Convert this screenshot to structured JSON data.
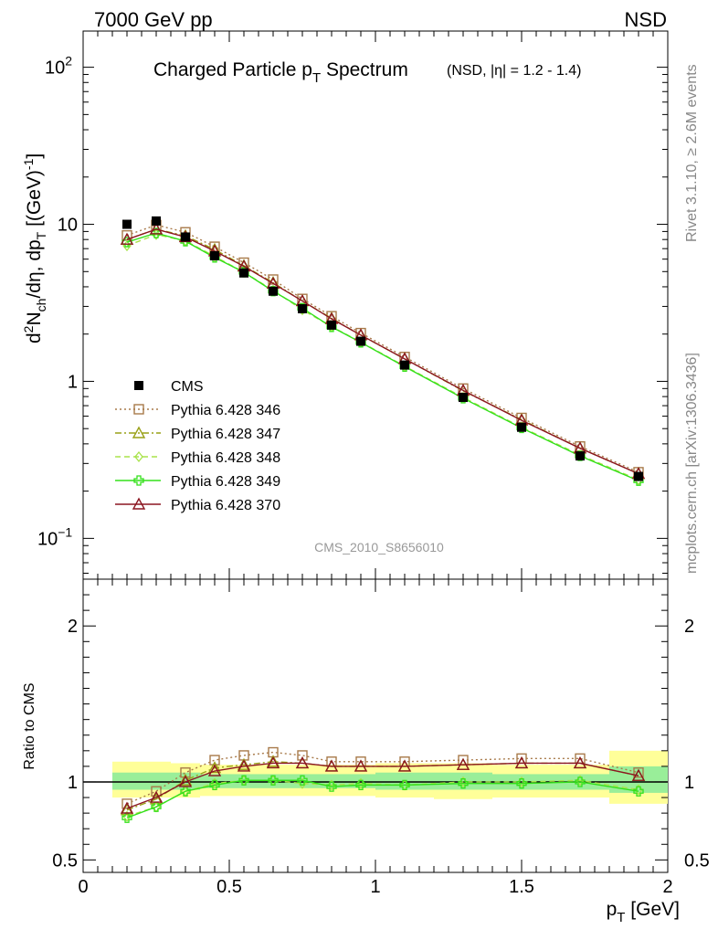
{
  "header": {
    "energy_label": "7000 GeV pp",
    "process_label": "NSD"
  },
  "side_labels": {
    "rivet": "Rivet 3.1.10, ≥ 2.6M events",
    "source": "mcplots.cern.ch [arXiv:1306.3436]"
  },
  "watermark": "CMS_2010_S8656010",
  "colors": {
    "cms": "#000000",
    "p346": "#a87a4a",
    "p347": "#99a017",
    "p348": "#a8e34a",
    "p349": "#33e01a",
    "p370": "#8b1520",
    "band_yellow": "#ffff99",
    "band_green": "#99ee99"
  },
  "chart_data": [
    {
      "type": "line",
      "panel": "main",
      "title_main": "Charged Particle p",
      "title_sub": "T",
      "title_tail": " Spectrum",
      "title_extra": "(NSD, |η| = 1.2 - 1.4)",
      "ylabel": "d²N_ch/dη, dp_T [(GeV)⁻¹]",
      "yscale": "log",
      "ylim": [
        0.055,
        170
      ],
      "xlim": [
        0,
        2
      ],
      "y_ticks": [
        {
          "value": 0.1,
          "base": "10",
          "exp": "−1"
        },
        {
          "value": 1,
          "label": "1"
        },
        {
          "value": 10,
          "label": "10"
        },
        {
          "value": 100,
          "base": "10",
          "exp": "2"
        }
      ],
      "x": [
        0.15,
        0.25,
        0.35,
        0.45,
        0.55,
        0.65,
        0.75,
        0.85,
        0.95,
        1.1,
        1.3,
        1.5,
        1.7,
        1.9
      ],
      "series": [
        {
          "name": "CMS",
          "key": "cms",
          "marker": "filled-square",
          "values": [
            10.0,
            10.5,
            8.3,
            6.3,
            4.9,
            3.75,
            2.9,
            2.28,
            1.8,
            1.27,
            0.79,
            0.51,
            0.335,
            0.248
          ]
        },
        {
          "name": "Pythia 6.428 346",
          "key": "p346",
          "marker": "open-square",
          "dash": "dotted",
          "values": [
            8.5,
            9.9,
            8.9,
            7.2,
            5.7,
            4.45,
            3.35,
            2.6,
            2.03,
            1.43,
            0.9,
            0.585,
            0.385,
            0.264
          ]
        },
        {
          "name": "Pythia 6.428 347",
          "key": "p347",
          "marker": "open-triangle",
          "dash": "dashdot",
          "values": [
            8.0,
            9.3,
            8.45,
            6.9,
            5.45,
            4.25,
            3.25,
            2.52,
            1.97,
            1.39,
            0.87,
            0.57,
            0.375,
            0.258
          ]
        },
        {
          "name": "Pythia 6.428 348",
          "key": "p348",
          "marker": "open-diamond",
          "dash": "dashed",
          "values": [
            7.3,
            8.6,
            7.85,
            6.25,
            4.95,
            3.8,
            2.85,
            2.23,
            1.78,
            1.25,
            0.79,
            0.51,
            0.34,
            0.236
          ]
        },
        {
          "name": "Pythia 6.428 349",
          "key": "p349",
          "marker": "open-cross",
          "dash": "solid",
          "values": [
            7.7,
            8.8,
            7.8,
            6.15,
            4.95,
            3.75,
            2.92,
            2.22,
            1.77,
            1.24,
            0.78,
            0.505,
            0.335,
            0.233
          ]
        },
        {
          "name": "Pythia 6.428 370",
          "key": "p370",
          "marker": "open-triangle",
          "dash": "solid",
          "values": [
            8.0,
            9.3,
            8.3,
            6.75,
            5.4,
            4.2,
            3.25,
            2.5,
            1.97,
            1.39,
            0.875,
            0.565,
            0.375,
            0.258
          ]
        }
      ]
    },
    {
      "type": "line",
      "panel": "ratio",
      "ylabel": "Ratio to CMS",
      "ylim": [
        0.42,
        2.3
      ],
      "xlim": [
        0,
        2
      ],
      "xlabel": "p_T [GeV]",
      "y_ticks": [
        {
          "value": 0.5,
          "label": "0.5"
        },
        {
          "value": 1,
          "label": "1"
        },
        {
          "value": 2,
          "label": "2"
        }
      ],
      "x_ticks": [
        {
          "value": 0,
          "label": "0"
        },
        {
          "value": 0.5,
          "label": "0.5"
        },
        {
          "value": 1,
          "label": "1"
        },
        {
          "value": 1.5,
          "label": "1.5"
        },
        {
          "value": 2,
          "label": "2"
        }
      ],
      "uncertainty_bands": {
        "edges": [
          0.1,
          0.2,
          0.3,
          0.4,
          0.5,
          0.6,
          0.7,
          0.8,
          0.9,
          1.0,
          1.2,
          1.4,
          1.6,
          1.8,
          2.0
        ],
        "yellow_lo": [
          0.9,
          0.9,
          0.9,
          0.91,
          0.91,
          0.91,
          0.91,
          0.91,
          0.91,
          0.9,
          0.89,
          0.9,
          0.9,
          0.86
        ],
        "yellow_hi": [
          1.13,
          1.13,
          1.12,
          1.11,
          1.11,
          1.11,
          1.11,
          1.11,
          1.11,
          1.12,
          1.12,
          1.11,
          1.11,
          1.2
        ],
        "green_lo": [
          0.95,
          0.95,
          0.95,
          0.96,
          0.96,
          0.96,
          0.96,
          0.96,
          0.96,
          0.95,
          0.95,
          0.95,
          0.95,
          0.93
        ],
        "green_hi": [
          1.06,
          1.06,
          1.06,
          1.05,
          1.05,
          1.05,
          1.05,
          1.05,
          1.05,
          1.06,
          1.06,
          1.05,
          1.05,
          1.1
        ]
      },
      "x": [
        0.15,
        0.25,
        0.35,
        0.45,
        0.55,
        0.65,
        0.75,
        0.85,
        0.95,
        1.1,
        1.3,
        1.5,
        1.7,
        1.9
      ],
      "series": [
        {
          "name": "Pythia 6.428 346",
          "key": "p346",
          "marker": "open-square",
          "dash": "dotted",
          "values": [
            0.86,
            0.94,
            1.06,
            1.14,
            1.17,
            1.19,
            1.17,
            1.13,
            1.13,
            1.13,
            1.14,
            1.15,
            1.15,
            1.06
          ]
        },
        {
          "name": "Pythia 6.428 347",
          "key": "p347",
          "marker": "open-triangle",
          "dash": "dashdot",
          "values": [
            0.82,
            0.89,
            1.01,
            1.09,
            1.11,
            1.13,
            1.12,
            1.1,
            1.1,
            1.1,
            1.11,
            1.12,
            1.12,
            1.04
          ]
        },
        {
          "name": "Pythia 6.428 348",
          "key": "p348",
          "marker": "open-diamond",
          "dash": "dashed",
          "values": [
            0.78,
            0.84,
            0.94,
            0.99,
            1.01,
            1.01,
            0.99,
            0.98,
            0.99,
            0.98,
            1.0,
            1.0,
            1.01,
            0.95
          ]
        },
        {
          "name": "Pythia 6.428 349",
          "key": "p349",
          "marker": "open-cross",
          "dash": "solid",
          "values": [
            0.77,
            0.84,
            0.94,
            0.98,
            1.01,
            1.01,
            1.01,
            0.97,
            0.98,
            0.98,
            0.99,
            0.99,
            1.0,
            0.94
          ]
        },
        {
          "name": "Pythia 6.428 370",
          "key": "p370",
          "marker": "open-triangle",
          "dash": "solid",
          "values": [
            0.83,
            0.9,
            1.0,
            1.07,
            1.1,
            1.12,
            1.12,
            1.1,
            1.1,
            1.1,
            1.11,
            1.12,
            1.12,
            1.04
          ]
        }
      ]
    }
  ]
}
